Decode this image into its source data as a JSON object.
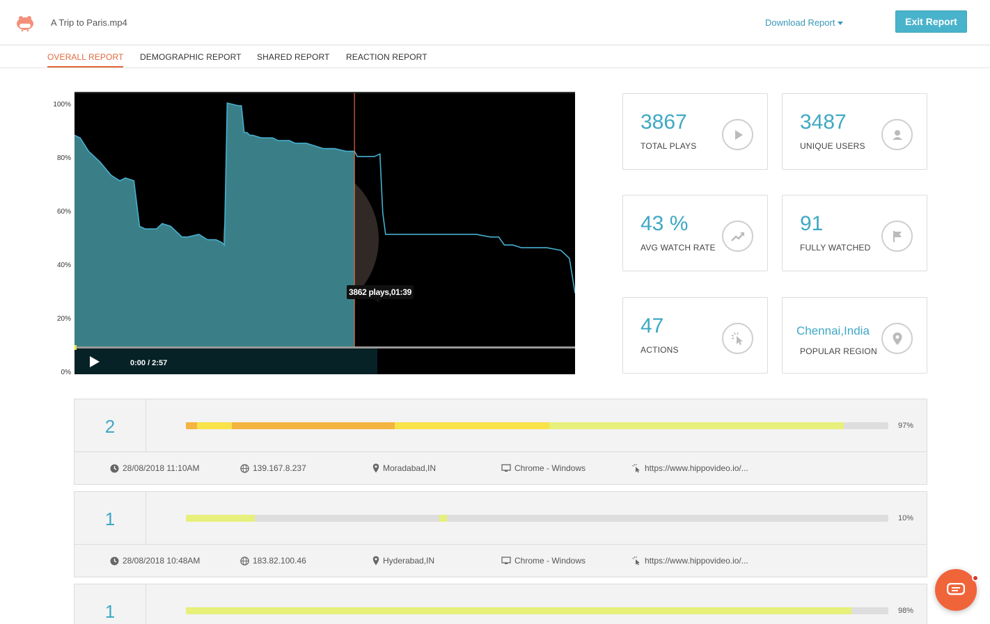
{
  "header": {
    "file_title": "A Trip to Paris.mp4",
    "download_label": "Download Report",
    "exit_label": "Exit Report"
  },
  "tabs": [
    {
      "label": "OVERALL REPORT",
      "active": true
    },
    {
      "label": "DEMOGRAPHIC REPORT",
      "active": false
    },
    {
      "label": "SHARED REPORT",
      "active": false
    },
    {
      "label": "REACTION REPORT",
      "active": false
    }
  ],
  "chart_data": {
    "type": "area",
    "y_ticks": [
      "100%",
      "80%",
      "60%",
      "40%",
      "20%",
      "0%"
    ],
    "ylim": [
      0,
      100
    ],
    "duration_seconds": 177,
    "x_seconds": [
      0,
      2,
      5,
      9,
      13,
      16,
      18,
      21,
      23,
      25,
      26,
      29,
      31,
      34,
      36,
      38,
      40,
      44,
      47,
      50,
      52,
      53,
      54,
      58,
      59,
      60,
      61,
      62,
      63,
      66,
      68,
      70,
      72,
      74,
      76,
      78,
      80,
      82,
      85,
      88,
      92,
      96,
      98,
      99,
      100,
      102,
      106,
      108,
      109,
      110,
      112,
      116,
      121,
      126,
      130,
      136,
      142,
      147,
      150,
      152,
      155,
      158,
      161,
      167,
      172,
      175,
      177
    ],
    "y_percent": [
      89,
      88,
      83,
      79,
      74,
      72,
      73,
      72,
      55,
      54,
      54,
      54,
      56,
      55,
      53,
      51,
      51,
      52,
      50,
      50,
      49,
      48,
      101,
      100,
      100,
      90,
      90,
      89,
      89,
      88,
      88,
      88,
      87,
      87,
      87,
      86,
      86,
      86,
      85,
      84,
      84,
      83,
      83,
      83,
      81,
      81,
      81,
      82,
      60,
      52,
      52,
      52,
      52,
      52,
      52,
      52,
      52,
      51,
      51,
      48,
      48,
      47,
      47,
      47,
      46,
      43,
      30
    ],
    "played_seconds": 99,
    "tooltip": "3862 plays,01:39",
    "time_display": "0:00 / 2:57"
  },
  "stats": [
    {
      "value": "3867",
      "label": "TOTAL PLAYS",
      "icon": "play-icon"
    },
    {
      "value": "3487",
      "label": "UNIQUE USERS",
      "icon": "user-icon"
    },
    {
      "value": "43 %",
      "label": "AVG WATCH RATE",
      "icon": "trend-icon"
    },
    {
      "value": "91",
      "label": "FULLY WATCHED",
      "icon": "flag-icon"
    },
    {
      "value": "47",
      "label": "ACTIONS",
      "icon": "cursor-click-icon"
    },
    {
      "value": "Chennai,India",
      "label": "POPULAR REGION",
      "icon": "location-pin-icon"
    }
  ],
  "sessions": [
    {
      "count": "2",
      "percent": "97%",
      "date": "28/08/2018 11:10AM",
      "ip": "139.167.8.237",
      "location": "Moradabad,IN",
      "browser": "Chrome - Windows",
      "source": "https://www.hippovideo.io/..."
    },
    {
      "count": "1",
      "percent": "10%",
      "date": "28/08/2018 10:48AM",
      "ip": "183.82.100.46",
      "location": "Hyderabad,IN",
      "browser": "Chrome - Windows",
      "source": "https://www.hippovideo.io/..."
    },
    {
      "count": "1",
      "percent": "98%"
    }
  ],
  "colors": {
    "accent": "#3fa8c4",
    "tab_active": "#e2683c",
    "exit_button": "#4ab3cc",
    "watched_light": "#e6f07a",
    "watched_yellow": "#f9e24a",
    "watched_orange": "#f4b540",
    "chat": "#f0643a"
  }
}
